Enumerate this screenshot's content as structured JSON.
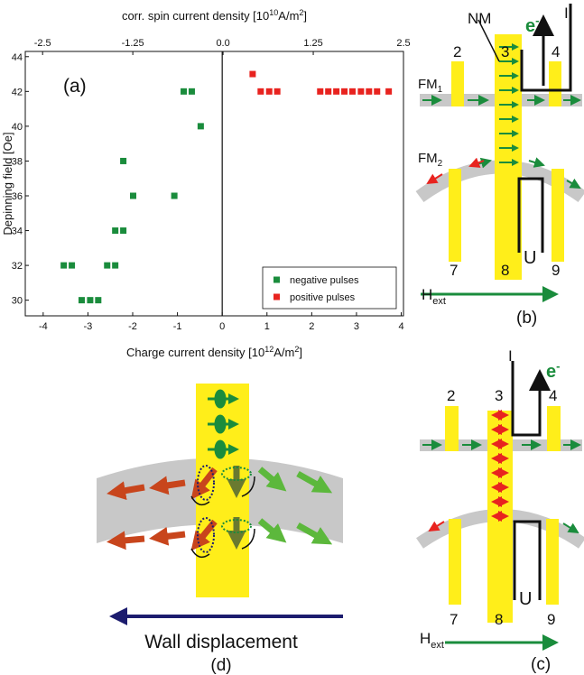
{
  "chart_data": {
    "type": "scatter",
    "panel_label": "(a)",
    "xlabel": [
      "Charge current density [10",
      "12",
      "A/m",
      "2",
      "]"
    ],
    "x2label": [
      "corr. spin current density [10",
      "10",
      "A/m",
      "2",
      "]"
    ],
    "ylabel": "Depinning field [Oe]",
    "xlim": [
      -4.4,
      4.05
    ],
    "xticks": [
      -4,
      -3,
      -2,
      -1,
      0,
      1,
      2,
      3,
      4
    ],
    "x2lim": [
      -2.74,
      2.5
    ],
    "x2ticks": [
      -2.5,
      -1.25,
      {
        "value": 0,
        "label": "0.0"
      },
      1.25,
      2.5
    ],
    "ylim": [
      29.1,
      44.3
    ],
    "yticks": [
      30,
      32,
      34,
      36,
      38,
      40,
      42,
      44
    ],
    "legend": "lower right",
    "series": [
      {
        "name": "negative pulses",
        "color": "#1a8c3c",
        "x": [
          -0.86,
          -0.68,
          -0.48,
          -2.21,
          -1.99,
          -1.07,
          -2.39,
          -2.21,
          -2.57,
          -2.39,
          -3.54,
          -3.36,
          -3.14,
          -2.95,
          -2.77
        ],
        "values": [
          42,
          42,
          40,
          38,
          36,
          36,
          34,
          34,
          32,
          32,
          32,
          32,
          30,
          30,
          30
        ]
      },
      {
        "name": "positive pulses",
        "color": "#e8231f",
        "x": [
          0.68,
          0.86,
          1.05,
          1.23,
          2.19,
          2.37,
          2.55,
          2.73,
          2.91,
          3.1,
          3.28,
          3.46,
          3.72
        ],
        "values": [
          43,
          42,
          42,
          42,
          42,
          42,
          42,
          42,
          42,
          42,
          42,
          42,
          42
        ]
      }
    ]
  },
  "panel_b": {
    "nm": "NM",
    "electron": {
      "text": "e",
      "sup": "-"
    },
    "current": "I",
    "contacts": [
      "2",
      "3",
      "4",
      "7",
      "8",
      "9"
    ],
    "fm1": {
      "text": "FM",
      "sub": "1"
    },
    "fm2": {
      "text": "FM",
      "sub": "2"
    },
    "voltage": "U",
    "field": {
      "text": "H",
      "sub": "ext"
    },
    "panel_label": "(b)"
  },
  "panel_c": {
    "electron": {
      "text": "e",
      "sup": "-"
    },
    "current": "I",
    "contacts": [
      "2",
      "3",
      "4",
      "7",
      "8",
      "9"
    ],
    "voltage": "U",
    "field": {
      "text": "H",
      "sub": "ext"
    },
    "panel_label": "(c)"
  },
  "panel_d": {
    "caption": "Wall displacement",
    "panel_label": "(d)"
  }
}
